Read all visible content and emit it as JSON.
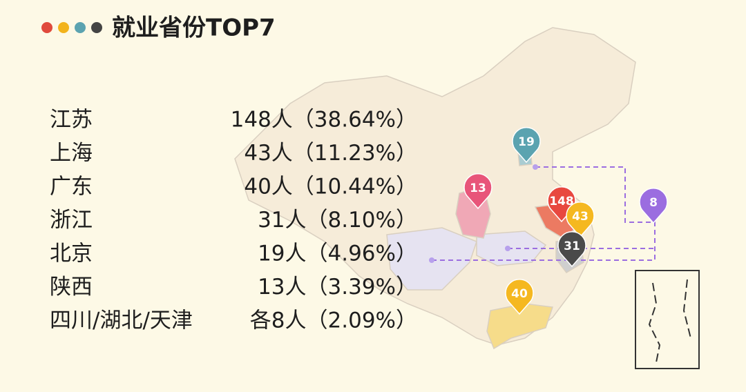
{
  "header": {
    "title": "就业省份TOP7"
  },
  "table": {
    "rows": [
      [
        "江苏",
        "148人（38.64%）"
      ],
      [
        "上海",
        "43人（11.23%）"
      ],
      [
        "广东",
        "40人（10.44%）"
      ],
      [
        "浙江",
        "31人（8.10%）"
      ],
      [
        "北京",
        "19人（4.96%）"
      ],
      [
        "陕西",
        "13人（3.39%）"
      ],
      [
        "四川/湖北/天津",
        "各8人（2.09%）"
      ]
    ]
  },
  "pins": [
    148,
    43,
    40,
    31,
    19,
    13,
    8
  ]
}
